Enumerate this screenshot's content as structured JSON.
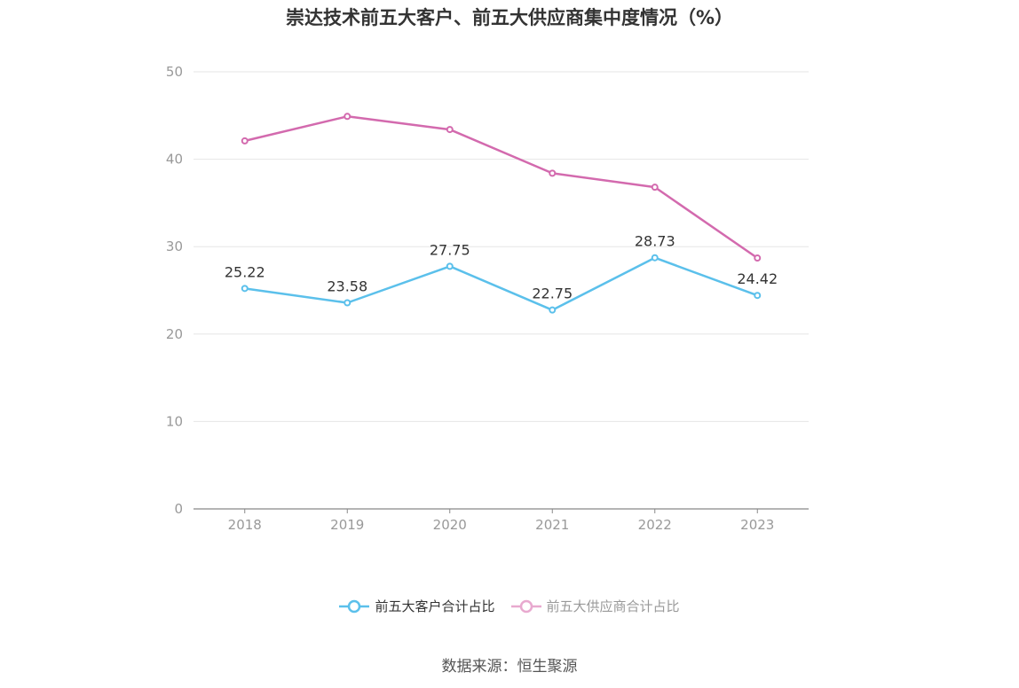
{
  "chart_data": {
    "type": "line",
    "title": "崇达技术前五大客户、前五大供应商集中度情况（%）",
    "categories": [
      "2018",
      "2019",
      "2020",
      "2021",
      "2022",
      "2023"
    ],
    "series": [
      {
        "name": "前五大客户合计占比",
        "color": "#5bc0eb",
        "values": [
          25.22,
          23.58,
          27.75,
          22.75,
          28.73,
          24.42
        ],
        "labels": [
          "25.22",
          "23.58",
          "27.75",
          "22.75",
          "28.73",
          "24.42"
        ],
        "show_labels": true
      },
      {
        "name": "前五大供应商合计占比",
        "color": "#d36aae",
        "legend_color": "#e8a9cf",
        "values": [
          42.1,
          44.9,
          43.4,
          38.4,
          36.8,
          28.7
        ],
        "show_labels": false
      }
    ],
    "yticks": [
      "0",
      "10",
      "20",
      "30",
      "40",
      "50"
    ],
    "ylim": [
      0,
      50
    ],
    "grid": true,
    "legend_position": "bottom"
  },
  "source": "数据来源：恒生聚源"
}
